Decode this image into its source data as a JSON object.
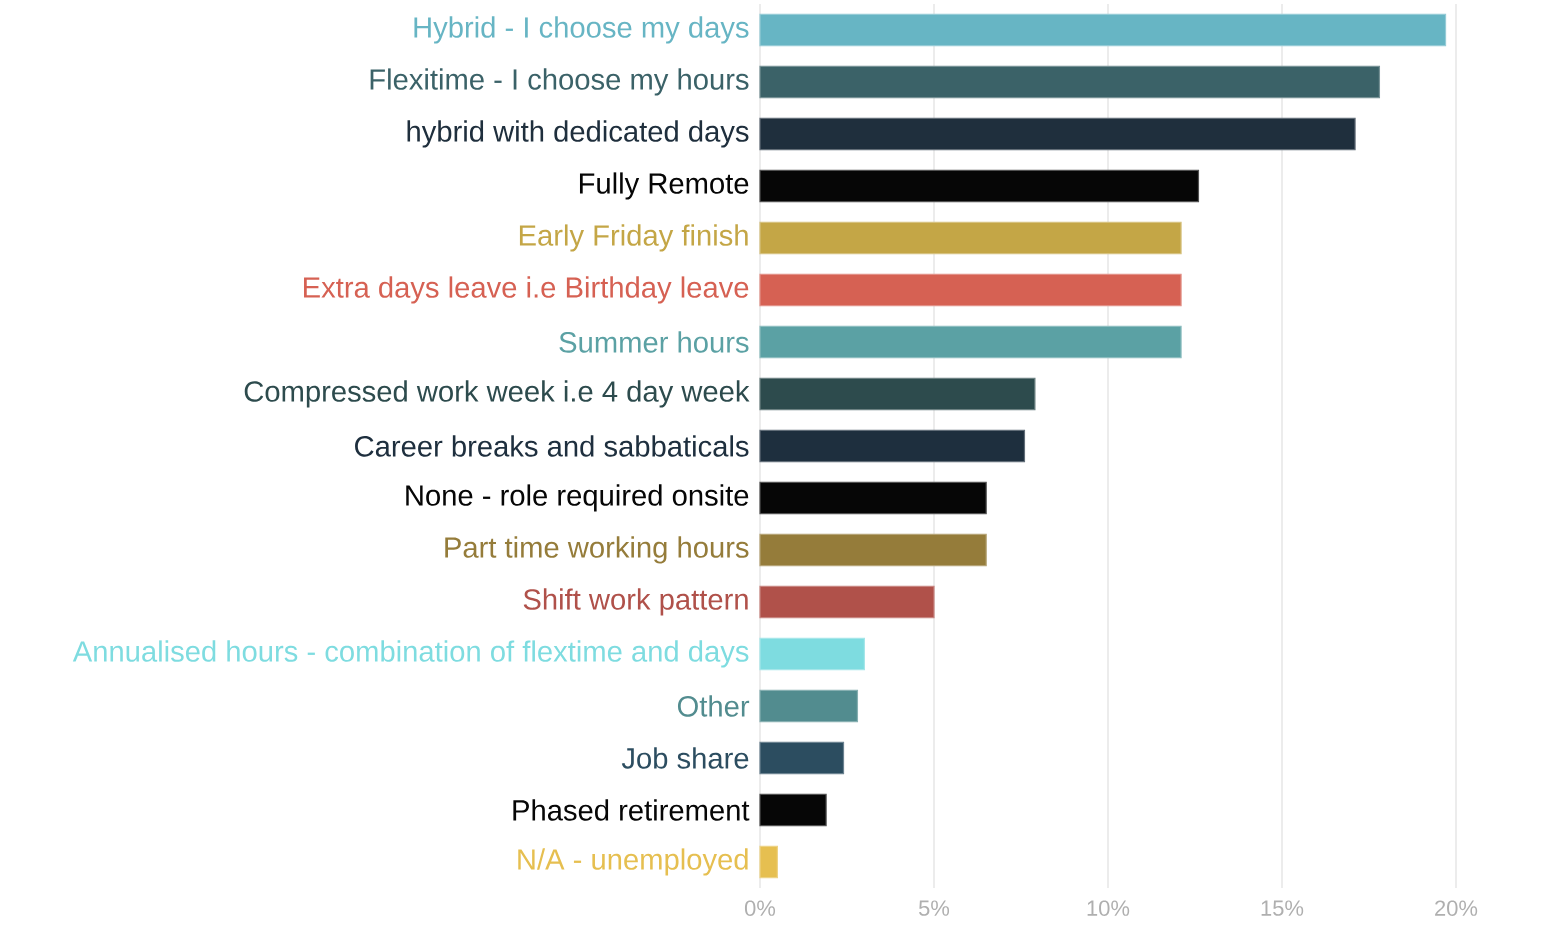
{
  "chart_data": {
    "type": "bar",
    "orientation": "horizontal",
    "categories": [
      "Hybrid - I choose my days",
      "Flexitime - I choose my hours",
      "hybrid with dedicated days",
      "Fully Remote",
      "Early Friday finish",
      "Extra days leave i.e Birthday leave",
      "Summer hours",
      "Compressed work week i.e 4 day week",
      "Career breaks and sabbaticals",
      "None - role required onsite",
      "Part time working hours",
      "Shift work pattern",
      "Annualised hours - combination of flextime and days",
      "Other",
      "Job share",
      "Phased retirement",
      "N/A - unemployed"
    ],
    "values": [
      19.7,
      17.8,
      17.1,
      12.6,
      12.1,
      12.1,
      12.1,
      7.9,
      7.6,
      6.5,
      6.5,
      5.0,
      3.0,
      2.8,
      2.4,
      1.9,
      0.5
    ],
    "colors": [
      "#67b5c4",
      "#3b6268",
      "#1f2f3d",
      "#060606",
      "#c4a646",
      "#d66153",
      "#5ba1a4",
      "#2d4b4d",
      "#1e2f3e",
      "#060606",
      "#957c3a",
      "#b0514a",
      "#7edce0",
      "#528c8f",
      "#2c4d60",
      "#060606",
      "#e6bf50"
    ],
    "xlim": [
      0,
      20
    ],
    "xticks": [
      {
        "value": 0,
        "label": "0%"
      },
      {
        "value": 5,
        "label": "5%"
      },
      {
        "value": 10,
        "label": "10%"
      },
      {
        "value": 15,
        "label": "15%"
      },
      {
        "value": 20,
        "label": "20%"
      }
    ],
    "grid": "x"
  }
}
